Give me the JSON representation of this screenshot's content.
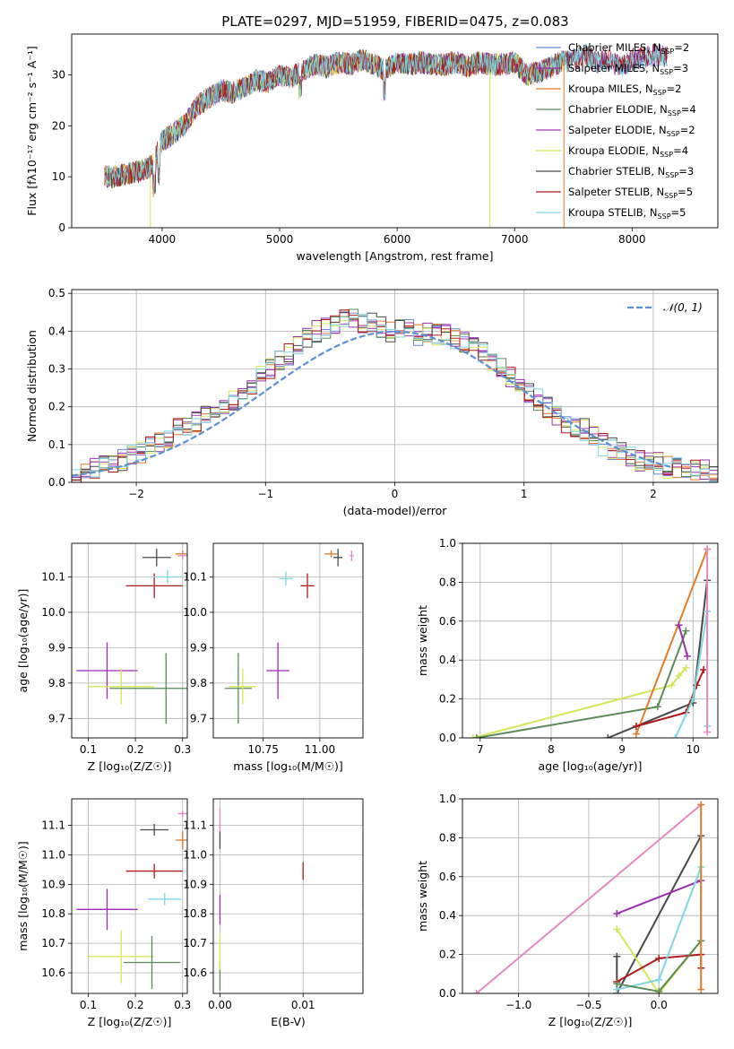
{
  "title": "PLATE=0297, MJD=51959, FIBERID=0475, z=0.083",
  "colors": {
    "Chabrier MILES": "#6b8bd6",
    "Salpeter MILES": "#9a2cb0",
    "Kroupa MILES": "#e07b2a",
    "Chabrier ELODIE": "#5a8a5a",
    "Salpeter ELODIE": "#a23cb5",
    "Kroupa ELODIE": "#d6e65a",
    "Chabrier STELIB": "#4a4a4a",
    "Salpeter STELIB": "#b01a1a",
    "Kroupa STELIB": "#7fd7e0",
    "normal": "#5b8fd6",
    "pink": "#e58ac0"
  },
  "chart_data": [
    {
      "type": "line",
      "panel": "spectrum",
      "xlabel": "wavelength [Angstrom, rest frame]",
      "ylabel": "Flux [fλ10⁻¹⁷ erg cm⁻² s⁻¹ A⁻¹]",
      "xlim": [
        3230,
        8730
      ],
      "ylim": [
        0,
        38
      ],
      "xticks": [
        4000,
        5000,
        6000,
        7000,
        8000
      ],
      "yticks": [
        0,
        10,
        20,
        30
      ],
      "legend_position": "right",
      "spectrum_envelope": {
        "x": [
          3510,
          3600,
          3700,
          3800,
          3900,
          4000,
          4100,
          4200,
          4300,
          4400,
          4500,
          4600,
          4700,
          4800,
          4900,
          5000,
          5100,
          5200,
          5300,
          5400,
          5500,
          5600,
          5700,
          5800,
          5900,
          6000,
          6100,
          6200,
          6300,
          6400,
          6500,
          6600,
          6700,
          6800,
          6900,
          7000,
          7100,
          7200,
          7300,
          7400,
          7500,
          7600,
          7700,
          7800,
          7900,
          8000,
          8100,
          8200,
          8300
        ],
        "y": [
          10,
          10,
          10.5,
          11,
          12,
          17,
          18.5,
          20.5,
          24,
          25.5,
          27,
          26.5,
          27.5,
          29,
          28.5,
          30,
          29.5,
          31,
          32,
          31.5,
          32.5,
          32,
          33,
          32,
          31,
          32.5,
          32,
          32.5,
          32,
          32,
          32.5,
          31.5,
          32.5,
          32,
          32,
          32.5,
          30,
          30.5,
          31.5,
          32.5,
          33,
          34,
          32.5,
          33,
          31.5,
          33,
          33.5,
          34,
          33.5
        ]
      },
      "series": [
        {
          "name": "Chabrier MILES, N_SSP=2",
          "color": "#6b8bd6"
        },
        {
          "name": "Salpeter MILES, N_SSP=3",
          "color": "#9a2cb0"
        },
        {
          "name": "Kroupa MILES, N_SSP=2",
          "color": "#e07b2a"
        },
        {
          "name": "Chabrier ELODIE, N_SSP=4",
          "color": "#5a8a5a"
        },
        {
          "name": "Salpeter ELODIE, N_SSP=2",
          "color": "#a23cb5"
        },
        {
          "name": "Kroupa ELODIE, N_SSP=4",
          "color": "#d6e65a"
        },
        {
          "name": "Chabrier STELIB, N_SSP=3",
          "color": "#4a4a4a"
        },
        {
          "name": "Salpeter STELIB, N_SSP=5",
          "color": "#b01a1a"
        },
        {
          "name": "Kroupa STELIB, N_SSP=5",
          "color": "#7fd7e0"
        }
      ],
      "legend_labels": [
        {
          "main": "Chabrier MILES, N",
          "sub": "SSP",
          "tail": "=2"
        },
        {
          "main": "Salpeter MILES, N",
          "sub": "SSP",
          "tail": "=3"
        },
        {
          "main": "Kroupa MILES, N",
          "sub": "SSP",
          "tail": "=2"
        },
        {
          "main": "Chabrier ELODIE, N",
          "sub": "SSP",
          "tail": "=4"
        },
        {
          "main": "Salpeter ELODIE, N",
          "sub": "SSP",
          "tail": "=2"
        },
        {
          "main": "Kroupa ELODIE, N",
          "sub": "SSP",
          "tail": "=4"
        },
        {
          "main": "Chabrier STELIB, N",
          "sub": "SSP",
          "tail": "=3"
        },
        {
          "main": "Salpeter STELIB, N",
          "sub": "SSP",
          "tail": "=5"
        },
        {
          "main": "Kroupa STELIB, N",
          "sub": "SSP",
          "tail": "=5"
        }
      ]
    },
    {
      "type": "histogram",
      "panel": "residuals",
      "xlabel": "(data-model)/error",
      "ylabel": "Normed distribution",
      "xlim": [
        -2.5,
        2.5
      ],
      "ylim": [
        0,
        0.51
      ],
      "xticks": [
        -2,
        -1,
        0,
        1,
        2
      ],
      "yticks": [
        0.0,
        0.1,
        0.2,
        0.3,
        0.4,
        0.5
      ],
      "grid": true,
      "legend": "𝒩(0, 1)",
      "legend_position": "top-right",
      "bin_width": 0.1,
      "bin_start": -2.5,
      "envelope": [
        0.02,
        0.03,
        0.04,
        0.05,
        0.05,
        0.06,
        0.07,
        0.08,
        0.1,
        0.11,
        0.12,
        0.14,
        0.15,
        0.16,
        0.18,
        0.19,
        0.21,
        0.22,
        0.24,
        0.26,
        0.28,
        0.3,
        0.32,
        0.34,
        0.36,
        0.38,
        0.4,
        0.41,
        0.42,
        0.43,
        0.44,
        0.42,
        0.42,
        0.41,
        0.4,
        0.4,
        0.41,
        0.39,
        0.4,
        0.39,
        0.39,
        0.38,
        0.37,
        0.36,
        0.34,
        0.32,
        0.3,
        0.28,
        0.26,
        0.24,
        0.22,
        0.2,
        0.18,
        0.16,
        0.15,
        0.14,
        0.12,
        0.1,
        0.09,
        0.08,
        0.07,
        0.06,
        0.05,
        0.05,
        0.04,
        0.04,
        0.03,
        0.03,
        0.03,
        0.02
      ],
      "normal_curve": {
        "mu": 0,
        "sigma": 1,
        "x_range": [
          -2.5,
          2.15
        ]
      }
    },
    {
      "type": "scatter",
      "panel": "age-vs-Z",
      "xlabel": "Z [log₁₀(Z/Z☉)]",
      "ylabel": "age  [log₁₀(age/yr)]",
      "xlim": [
        0.065,
        0.31
      ],
      "ylim": [
        9.645,
        10.195
      ],
      "xticks": [
        0.1,
        0.2,
        0.3
      ],
      "yticks": [
        9.7,
        9.8,
        9.9,
        10.0,
        10.1
      ],
      "grid": true,
      "points": [
        {
          "color": "#9a2cb0",
          "x": 0.14,
          "y": 9.835,
          "xerr": 0.065,
          "yerr": 0.08
        },
        {
          "color": "#d6e65a",
          "x": 0.17,
          "y": 9.79,
          "xerr": 0.07,
          "yerr": 0.05
        },
        {
          "color": "#5a8a5a",
          "x": 0.265,
          "y": 9.785,
          "xerr": 0.12,
          "yerr": 0.1
        },
        {
          "color": "#b01a1a",
          "x": 0.24,
          "y": 10.075,
          "xerr": 0.06,
          "yerr": 0.035
        },
        {
          "color": "#4a4a4a",
          "x": 0.245,
          "y": 10.155,
          "xerr": 0.03,
          "yerr": 0.025
        },
        {
          "color": "#7fd7e0",
          "x": 0.268,
          "y": 10.1,
          "xerr": 0.03,
          "yerr": 0.02
        },
        {
          "color": "#e07b2a",
          "x": 0.3,
          "y": 10.165,
          "xerr": 0.015,
          "yerr": 0.01
        },
        {
          "color": "#e58ac0",
          "x": 0.3,
          "y": 10.16,
          "xerr": 0.01,
          "yerr": 0.01
        }
      ]
    },
    {
      "type": "scatter",
      "panel": "age-vs-mass",
      "xlabel": "mass [log₁₀(M/M☉)]",
      "ylabel": "",
      "xlim": [
        10.53,
        11.19
      ],
      "ylim": [
        9.645,
        10.195
      ],
      "xticks": [
        10.75,
        11.0
      ],
      "yticks": [
        9.7,
        9.8,
        9.9,
        10.0,
        10.1
      ],
      "grid": true,
      "points": [
        {
          "color": "#5a8a5a",
          "x": 10.64,
          "y": 9.785,
          "xerr": 0.06,
          "yerr": 0.1
        },
        {
          "color": "#d6e65a",
          "x": 10.66,
          "y": 9.79,
          "xerr": 0.06,
          "yerr": 0.05
        },
        {
          "color": "#9a2cb0",
          "x": 10.815,
          "y": 9.835,
          "xerr": 0.05,
          "yerr": 0.08
        },
        {
          "color": "#7fd7e0",
          "x": 10.85,
          "y": 10.095,
          "xerr": 0.03,
          "yerr": 0.02
        },
        {
          "color": "#b01a1a",
          "x": 10.945,
          "y": 10.075,
          "xerr": 0.03,
          "yerr": 0.035
        },
        {
          "color": "#e07b2a",
          "x": 11.05,
          "y": 10.165,
          "xerr": 0.03,
          "yerr": 0.01
        },
        {
          "color": "#4a4a4a",
          "x": 11.08,
          "y": 10.155,
          "xerr": 0.02,
          "yerr": 0.025
        },
        {
          "color": "#e58ac0",
          "x": 11.14,
          "y": 10.16,
          "xerr": 0.01,
          "yerr": 0.015
        }
      ]
    },
    {
      "type": "line",
      "panel": "weight-vs-age",
      "xlabel": "age  [log₁₀(age/yr)]",
      "ylabel": "mass weight",
      "xlim": [
        6.75,
        10.35
      ],
      "ylim": [
        0,
        1
      ],
      "xticks": [
        7,
        8,
        9,
        10
      ],
      "yticks": [
        0.0,
        0.2,
        0.4,
        0.6,
        0.8,
        1.0
      ],
      "grid": true,
      "series": [
        {
          "color": "#d6e65a",
          "x": [
            6.9,
            9.7,
            9.8,
            9.9
          ],
          "y": [
            0.0,
            0.27,
            0.32,
            0.36
          ]
        },
        {
          "color": "#5a8a5a",
          "x": [
            6.95,
            9.5,
            9.9
          ],
          "y": [
            0.0,
            0.16,
            0.55
          ]
        },
        {
          "color": "#4a4a4a",
          "x": [
            8.8,
            10.0,
            10.2
          ],
          "y": [
            0.0,
            0.18,
            0.81
          ]
        },
        {
          "color": "#e07b2a",
          "x": [
            9.2,
            10.2
          ],
          "y": [
            0.02,
            0.97
          ]
        },
        {
          "color": "#b01a1a",
          "x": [
            9.2,
            9.9,
            10.05,
            10.15
          ],
          "y": [
            0.06,
            0.13,
            0.27,
            0.35
          ]
        },
        {
          "color": "#9a2cb0",
          "x": [
            9.8,
            9.92
          ],
          "y": [
            0.58,
            0.42
          ]
        },
        {
          "color": "#7fd7e0",
          "x": [
            9.75,
            10.0,
            10.2,
            10.2
          ],
          "y": [
            0.0,
            0.2,
            0.65,
            0.06
          ]
        },
        {
          "color": "#e58ac0",
          "x": [
            10.2,
            10.2
          ],
          "y": [
            0.97,
            0.03
          ]
        }
      ]
    },
    {
      "type": "scatter",
      "panel": "mass-vs-Z",
      "xlabel": "Z [log₁₀(Z/Z☉)]",
      "ylabel": "mass [log₁₀(M/M☉)]",
      "xlim": [
        0.065,
        0.31
      ],
      "ylim": [
        10.53,
        11.19
      ],
      "xticks": [
        0.1,
        0.2,
        0.3
      ],
      "yticks": [
        10.6,
        10.7,
        10.8,
        10.9,
        11.0,
        11.1
      ],
      "grid": true,
      "points": [
        {
          "color": "#9a2cb0",
          "x": 0.14,
          "y": 10.815,
          "xerr": 0.065,
          "yerr": 0.07
        },
        {
          "color": "#d6e65a",
          "x": 0.17,
          "y": 10.655,
          "xerr": 0.07,
          "yerr": 0.09
        },
        {
          "color": "#5a8a5a",
          "x": 0.235,
          "y": 10.635,
          "xerr": 0.06,
          "yerr": 0.09
        },
        {
          "color": "#b01a1a",
          "x": 0.24,
          "y": 10.945,
          "xerr": 0.06,
          "yerr": 0.025
        },
        {
          "color": "#4a4a4a",
          "x": 0.24,
          "y": 11.085,
          "xerr": 0.03,
          "yerr": 0.02
        },
        {
          "color": "#7fd7e0",
          "x": 0.262,
          "y": 10.85,
          "xerr": 0.035,
          "yerr": 0.02
        },
        {
          "color": "#e07b2a",
          "x": 0.3,
          "y": 11.05,
          "xerr": 0.015,
          "yerr": 0.03
        },
        {
          "color": "#e58ac0",
          "x": 0.3,
          "y": 11.14,
          "xerr": 0.01,
          "yerr": 0.01
        }
      ]
    },
    {
      "type": "scatter",
      "panel": "mass-vs-EBV",
      "xlabel": "E(B-V)",
      "ylabel": "",
      "xlim": [
        -0.0008,
        0.0172
      ],
      "ylim": [
        10.53,
        11.19
      ],
      "xticks": [
        0.0,
        0.01
      ],
      "yticks": [
        10.6,
        10.7,
        10.8,
        10.9,
        11.0,
        11.1
      ],
      "grid": true,
      "points": [
        {
          "color": "#5a8a5a",
          "x": 0.0,
          "y": 10.59,
          "yerr": 0.05
        },
        {
          "color": "#d6e65a",
          "x": 0.0,
          "y": 10.67,
          "yerr": 0.06
        },
        {
          "color": "#9a2cb0",
          "x": 0.0,
          "y": 10.815,
          "yerr": 0.05
        },
        {
          "color": "#4a4a4a",
          "x": 0.0,
          "y": 11.05,
          "yerr": 0.03
        },
        {
          "color": "#e58ac0",
          "x": 0.0,
          "y": 11.12,
          "yerr": 0.04
        },
        {
          "color": "#b01a1a",
          "x": 0.01,
          "y": 10.945,
          "yerr": 0.03
        },
        {
          "color": "#7fd7e0",
          "x": 0.0172,
          "y": 10.845,
          "yerr": 0.02
        }
      ]
    },
    {
      "type": "line",
      "panel": "weight-vs-Z",
      "xlabel": "Z [log₁₀(Z/Z☉)]",
      "ylabel": "mass weight",
      "xlim": [
        -1.4,
        0.42
      ],
      "ylim": [
        0,
        1
      ],
      "xticks": [
        -1.0,
        -0.5,
        0.0
      ],
      "yticks": [
        0.0,
        0.2,
        0.4,
        0.6,
        0.8,
        1.0
      ],
      "grid": true,
      "series": [
        {
          "color": "#e58ac0",
          "x": [
            -1.3,
            0.3
          ],
          "y": [
            0.0,
            0.97
          ]
        },
        {
          "color": "#4a4a4a",
          "x": [
            -0.3,
            -0.3,
            0.3
          ],
          "y": [
            0.19,
            0.0,
            0.81
          ]
        },
        {
          "color": "#9a2cb0",
          "x": [
            -0.3,
            0.3
          ],
          "y": [
            0.41,
            0.58
          ]
        },
        {
          "color": "#d6e65a",
          "x": [
            -0.3,
            0.0,
            0.3
          ],
          "y": [
            0.33,
            0.0,
            0.27
          ]
        },
        {
          "color": "#b01a1a",
          "x": [
            -0.3,
            0.0,
            0.3,
            0.3
          ],
          "y": [
            0.06,
            0.18,
            0.2,
            0.13
          ]
        },
        {
          "color": "#7fd7e0",
          "x": [
            -0.3,
            0.0,
            0.3,
            0.3
          ],
          "y": [
            0.02,
            0.07,
            0.65,
            0.27
          ]
        },
        {
          "color": "#5a8a5a",
          "x": [
            -0.3,
            0.0,
            0.3
          ],
          "y": [
            0.05,
            0.01,
            0.27
          ]
        },
        {
          "color": "#e07b2a",
          "x": [
            0.3,
            0.3
          ],
          "y": [
            0.97,
            0.02
          ]
        }
      ]
    }
  ]
}
